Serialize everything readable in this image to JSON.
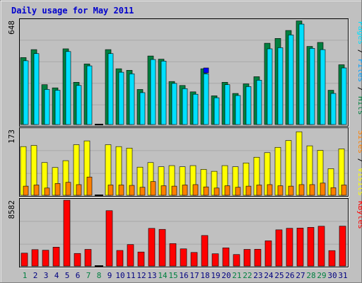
{
  "title": "Daily usage for May 2011",
  "colors": {
    "background": "#c0c0c0",
    "title": "#0000cc",
    "panel_bg": "#c0c0c0",
    "grid": "#a8a8a8",
    "hits": "#008040",
    "files": "#00e0ff",
    "pages": "#00a0ff",
    "visits": "#ffff00",
    "sites": "#ff8000",
    "kbytes": "#ff0000",
    "weekend_label": "#008040",
    "weekday_label": "#000080"
  },
  "chart_data": [
    {
      "type": "bar",
      "name": "hits-files-pages",
      "ymax_label": "648",
      "legend_parts": [
        {
          "text": "Pages",
          "color": "#00e0ff"
        },
        {
          "text": " / ",
          "color": "#000000"
        },
        {
          "text": "Files",
          "color": "#00a0ff"
        },
        {
          "text": " / ",
          "color": "#000000"
        },
        {
          "text": "Hits",
          "color": "#008040"
        }
      ],
      "ylim": [
        0,
        648
      ],
      "categories": [
        "1",
        "2",
        "3",
        "4",
        "5",
        "6",
        "7",
        "8",
        "9",
        "10",
        "11",
        "12",
        "13",
        "14",
        "15",
        "16",
        "17",
        "18",
        "19",
        "20",
        "21",
        "22",
        "23",
        "24",
        "25",
        "26",
        "27",
        "28",
        "29",
        "30",
        "31"
      ],
      "series": [
        {
          "name": "Hits",
          "values": [
            420,
            470,
            250,
            230,
            475,
            265,
            380,
            0,
            470,
            350,
            340,
            220,
            430,
            410,
            270,
            245,
            205,
            350,
            180,
            265,
            195,
            255,
            300,
            510,
            540,
            590,
            650,
            490,
            515,
            215,
            375
          ]
        },
        {
          "name": "Files",
          "values": [
            400,
            445,
            220,
            215,
            458,
            245,
            368,
            0,
            445,
            328,
            318,
            200,
            408,
            398,
            258,
            225,
            190,
            318,
            168,
            250,
            182,
            238,
            278,
            475,
            482,
            562,
            630,
            478,
            470,
            195,
            355
          ]
        },
        {
          "name": "Pages",
          "values": [
            0,
            0,
            0,
            0,
            0,
            0,
            0,
            0,
            0,
            0,
            0,
            0,
            0,
            0,
            0,
            0,
            0,
            355,
            0,
            0,
            0,
            0,
            0,
            0,
            0,
            0,
            0,
            0,
            0,
            0,
            0
          ]
        }
      ]
    },
    {
      "type": "bar",
      "name": "visits-sites",
      "ymax_label": "173",
      "legend_parts": [
        {
          "text": "Sites",
          "color": "#ff8000"
        },
        {
          "text": " / ",
          "color": "#000000"
        },
        {
          "text": "Visits",
          "color": "#ffff00"
        }
      ],
      "ylim": [
        0,
        173
      ],
      "categories": [
        "1",
        "2",
        "3",
        "4",
        "5",
        "6",
        "7",
        "8",
        "9",
        "10",
        "11",
        "12",
        "13",
        "14",
        "15",
        "16",
        "17",
        "18",
        "19",
        "20",
        "21",
        "22",
        "23",
        "24",
        "25",
        "26",
        "27",
        "28",
        "29",
        "30",
        "31"
      ],
      "series": [
        {
          "name": "Visits",
          "values": [
            128,
            131,
            86,
            73,
            91,
            133,
            143,
            0,
            133,
            128,
            124,
            74,
            86,
            75,
            78,
            75,
            78,
            68,
            63,
            78,
            75,
            85,
            100,
            112,
            126,
            144,
            167,
            130,
            118,
            70,
            122
          ]
        },
        {
          "name": "Sites",
          "values": [
            24,
            27,
            19,
            31,
            34,
            28,
            48,
            0,
            27,
            27,
            26,
            21,
            36,
            25,
            24,
            27,
            28,
            22,
            19,
            25,
            21,
            24,
            27,
            28,
            25,
            24,
            28,
            28,
            32,
            20,
            27
          ]
        }
      ]
    },
    {
      "type": "bar",
      "name": "kbytes",
      "ymax_label": "8582",
      "legend_parts": [
        {
          "text": "KBytes",
          "color": "#ff0000"
        }
      ],
      "ylim": [
        0,
        8582
      ],
      "categories": [
        "1",
        "2",
        "3",
        "4",
        "5",
        "6",
        "7",
        "8",
        "9",
        "10",
        "11",
        "12",
        "13",
        "14",
        "15",
        "16",
        "17",
        "18",
        "19",
        "20",
        "21",
        "22",
        "23",
        "24",
        "25",
        "26",
        "27",
        "28",
        "29",
        "30",
        "31"
      ],
      "series": [
        {
          "name": "KBytes",
          "values": [
            1680,
            2140,
            2060,
            2460,
            8582,
            1640,
            2170,
            0,
            7220,
            2030,
            2800,
            1830,
            4910,
            4780,
            2930,
            2240,
            1770,
            3980,
            1600,
            2370,
            1500,
            2170,
            2190,
            3290,
            4720,
            4920,
            4950,
            5040,
            5190,
            2010,
            5200
          ]
        }
      ]
    }
  ]
}
